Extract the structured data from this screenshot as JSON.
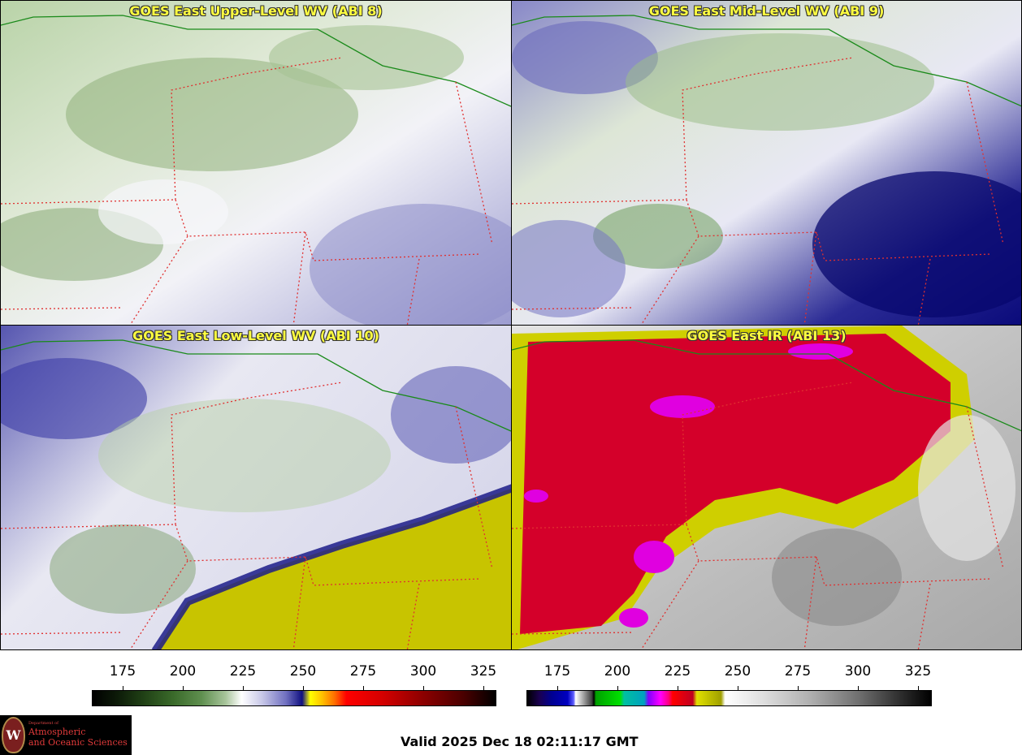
{
  "panels": [
    {
      "id": "upper",
      "title": "GOES East Upper-Level WV (ABI 8)"
    },
    {
      "id": "mid",
      "title": "GOES East Mid-Level WV (ABI 9)"
    },
    {
      "id": "low",
      "title": "GOES East Low-Level WV (ABI 10)"
    },
    {
      "id": "ir",
      "title": "GOES East IR (ABI 13)"
    }
  ],
  "colorbars": {
    "wv": {
      "ticks": [
        "175",
        "200",
        "225",
        "250",
        "275",
        "300",
        "325"
      ]
    },
    "ir": {
      "ticks": [
        "175",
        "200",
        "225",
        "250",
        "275",
        "300",
        "325"
      ]
    }
  },
  "logo": {
    "seal_letter": "W",
    "dept": "Department of",
    "line1": "Atmospheric",
    "line2": "and Oceanic Sciences"
  },
  "valid_time": "Valid 2025 Dec 18 02:11:17 GMT",
  "colors": {
    "state_border": "#e03030",
    "country_border": "#1a8a1a",
    "title_text": "#ffff40"
  }
}
